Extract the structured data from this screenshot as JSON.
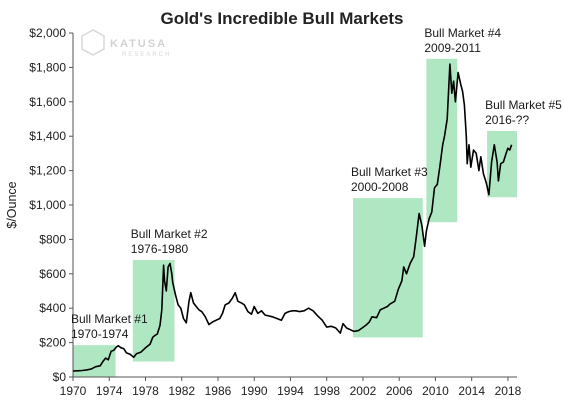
{
  "logo": {
    "name": "KATUSA",
    "sub": "RESEARCH"
  },
  "chart_data": {
    "type": "line",
    "title": "Gold's Incredible Bull Markets",
    "xlabel": "",
    "ylabel": "$/Ounce",
    "xlim": [
      1970,
      2019
    ],
    "ylim": [
      0,
      2000
    ],
    "grid": false,
    "x_ticks": [
      "1970",
      "1974",
      "1978",
      "1982",
      "1986",
      "1990",
      "1994",
      "1998",
      "2002",
      "2006",
      "2010",
      "2014",
      "2018"
    ],
    "y_ticks": [
      "$0",
      "$200",
      "$400",
      "$600",
      "$800",
      "$1,000",
      "$1,200",
      "$1,400",
      "$1,600",
      "$1,800",
      "$2,000"
    ],
    "series": [
      {
        "name": "",
        "color": "#000000",
        "points": [
          [
            1970.0,
            35
          ],
          [
            1970.5,
            36
          ],
          [
            1971.0,
            38
          ],
          [
            1971.5,
            41
          ],
          [
            1972.0,
            46
          ],
          [
            1972.5,
            60
          ],
          [
            1973.0,
            65
          ],
          [
            1973.3,
            90
          ],
          [
            1973.6,
            110
          ],
          [
            1973.9,
            100
          ],
          [
            1974.2,
            150
          ],
          [
            1974.5,
            155
          ],
          [
            1974.8,
            175
          ],
          [
            1975.0,
            182
          ],
          [
            1975.3,
            170
          ],
          [
            1975.6,
            165
          ],
          [
            1975.9,
            140
          ],
          [
            1976.3,
            132
          ],
          [
            1976.7,
            115
          ],
          [
            1977.0,
            135
          ],
          [
            1977.5,
            145
          ],
          [
            1978.0,
            170
          ],
          [
            1978.5,
            190
          ],
          [
            1978.8,
            230
          ],
          [
            1979.0,
            240
          ],
          [
            1979.3,
            250
          ],
          [
            1979.6,
            300
          ],
          [
            1979.8,
            390
          ],
          [
            1980.0,
            650
          ],
          [
            1980.1,
            560
          ],
          [
            1980.3,
            500
          ],
          [
            1980.5,
            640
          ],
          [
            1980.7,
            660
          ],
          [
            1980.9,
            600
          ],
          [
            1981.0,
            550
          ],
          [
            1981.3,
            480
          ],
          [
            1981.6,
            420
          ],
          [
            1981.9,
            400
          ],
          [
            1982.2,
            340
          ],
          [
            1982.5,
            315
          ],
          [
            1982.8,
            440
          ],
          [
            1983.0,
            490
          ],
          [
            1983.3,
            430
          ],
          [
            1983.6,
            410
          ],
          [
            1983.9,
            390
          ],
          [
            1984.2,
            380
          ],
          [
            1984.6,
            350
          ],
          [
            1985.0,
            305
          ],
          [
            1985.4,
            320
          ],
          [
            1985.8,
            330
          ],
          [
            1986.2,
            340
          ],
          [
            1986.5,
            370
          ],
          [
            1986.8,
            420
          ],
          [
            1987.2,
            430
          ],
          [
            1987.6,
            460
          ],
          [
            1987.9,
            490
          ],
          [
            1988.2,
            440
          ],
          [
            1988.6,
            430
          ],
          [
            1988.9,
            420
          ],
          [
            1989.3,
            380
          ],
          [
            1989.7,
            365
          ],
          [
            1990.0,
            410
          ],
          [
            1990.4,
            370
          ],
          [
            1990.8,
            385
          ],
          [
            1991.2,
            360
          ],
          [
            1991.6,
            355
          ],
          [
            1992.0,
            350
          ],
          [
            1992.5,
            340
          ],
          [
            1993.0,
            330
          ],
          [
            1993.4,
            370
          ],
          [
            1993.8,
            380
          ],
          [
            1994.2,
            385
          ],
          [
            1994.6,
            385
          ],
          [
            1995.0,
            380
          ],
          [
            1995.5,
            385
          ],
          [
            1996.0,
            400
          ],
          [
            1996.5,
            385
          ],
          [
            1997.0,
            355
          ],
          [
            1997.5,
            330
          ],
          [
            1998.0,
            290
          ],
          [
            1998.5,
            295
          ],
          [
            1999.0,
            285
          ],
          [
            1999.5,
            255
          ],
          [
            1999.8,
            310
          ],
          [
            2000.2,
            285
          ],
          [
            2000.6,
            275
          ],
          [
            2001.0,
            265
          ],
          [
            2001.5,
            270
          ],
          [
            2001.9,
            285
          ],
          [
            2002.3,
            300
          ],
          [
            2002.7,
            320
          ],
          [
            2003.0,
            350
          ],
          [
            2003.5,
            345
          ],
          [
            2003.9,
            390
          ],
          [
            2004.3,
            400
          ],
          [
            2004.7,
            410
          ],
          [
            2005.0,
            425
          ],
          [
            2005.5,
            440
          ],
          [
            2005.9,
            510
          ],
          [
            2006.3,
            560
          ],
          [
            2006.5,
            640
          ],
          [
            2006.8,
            600
          ],
          [
            2007.2,
            660
          ],
          [
            2007.6,
            700
          ],
          [
            2007.9,
            820
          ],
          [
            2008.2,
            950
          ],
          [
            2008.5,
            880
          ],
          [
            2008.8,
            760
          ],
          [
            2009.0,
            850
          ],
          [
            2009.3,
            920
          ],
          [
            2009.6,
            960
          ],
          [
            2009.9,
            1100
          ],
          [
            2010.2,
            1120
          ],
          [
            2010.5,
            1230
          ],
          [
            2010.8,
            1350
          ],
          [
            2011.0,
            1400
          ],
          [
            2011.3,
            1500
          ],
          [
            2011.6,
            1820
          ],
          [
            2011.8,
            1650
          ],
          [
            2012.0,
            1720
          ],
          [
            2012.2,
            1600
          ],
          [
            2012.5,
            1770
          ],
          [
            2012.8,
            1700
          ],
          [
            2013.0,
            1660
          ],
          [
            2013.2,
            1580
          ],
          [
            2013.4,
            1400
          ],
          [
            2013.5,
            1240
          ],
          [
            2013.7,
            1350
          ],
          [
            2013.9,
            1220
          ],
          [
            2014.2,
            1320
          ],
          [
            2014.5,
            1300
          ],
          [
            2014.8,
            1200
          ],
          [
            2015.0,
            1280
          ],
          [
            2015.3,
            1180
          ],
          [
            2015.6,
            1130
          ],
          [
            2015.9,
            1060
          ],
          [
            2016.2,
            1250
          ],
          [
            2016.5,
            1350
          ],
          [
            2016.8,
            1250
          ],
          [
            2016.95,
            1140
          ],
          [
            2017.2,
            1240
          ],
          [
            2017.5,
            1250
          ],
          [
            2017.8,
            1300
          ],
          [
            2018.0,
            1330
          ],
          [
            2018.2,
            1320
          ],
          [
            2018.4,
            1350
          ]
        ]
      }
    ],
    "annotations": [
      {
        "label1": "Bull Market #1",
        "label2": "1970-1974",
        "x0": 1970.0,
        "x1": 1974.7,
        "y0": 0,
        "y1": 185
      },
      {
        "label1": "Bull Market #2",
        "label2": "1976-1980",
        "x0": 1976.6,
        "x1": 1981.2,
        "y0": 90,
        "y1": 680
      },
      {
        "label1": "Bull Market #3",
        "label2": "2000-2008",
        "x0": 2000.9,
        "x1": 2008.6,
        "y0": 230,
        "y1": 1040
      },
      {
        "label1": "Bull Market #4",
        "label2": "2009-2011",
        "x0": 2009.0,
        "x1": 2012.4,
        "y0": 900,
        "y1": 1850
      },
      {
        "label1": "Bull Market #5",
        "label2": "2016-??",
        "x0": 2015.7,
        "x1": 2019.0,
        "y0": 1045,
        "y1": 1430
      }
    ],
    "colors": {
      "line": "#000000",
      "highlight": "#aee7c1"
    }
  }
}
